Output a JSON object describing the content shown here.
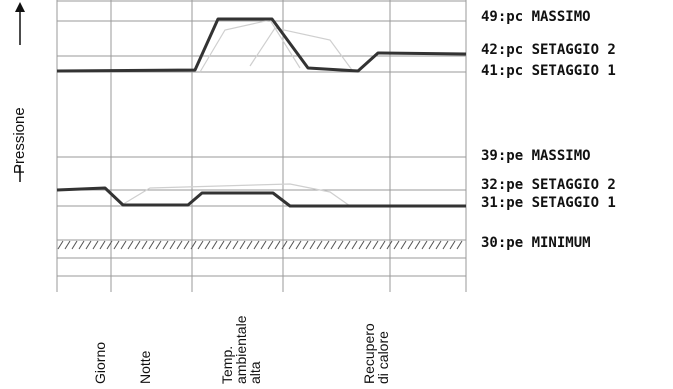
{
  "axis": {
    "y_label": "Pressione"
  },
  "levels": [
    {
      "id": "pc-massimo",
      "label": "49:pc MASSIMO"
    },
    {
      "id": "pc-setaggio-2",
      "label": "42:pc SETAGGIO 2"
    },
    {
      "id": "pc-setaggio-1",
      "label": "41:pc SETAGGIO 1"
    },
    {
      "id": "pe-massimo",
      "label": "39:pe MASSIMO"
    },
    {
      "id": "pe-setaggio-2",
      "label": "32:pe SETAGGIO 2"
    },
    {
      "id": "pe-setaggio-1",
      "label": "31:pe SETAGGIO 1"
    },
    {
      "id": "pe-minimum",
      "label": "30:pe MINIMUM"
    }
  ],
  "phases": [
    {
      "id": "giorno",
      "lines": [
        "Giorno"
      ]
    },
    {
      "id": "notte",
      "lines": [
        "Notte"
      ]
    },
    {
      "id": "temp-ambientale-alta",
      "lines": [
        "Temp.",
        "ambientale",
        "alta"
      ]
    },
    {
      "id": "recupero-di-calore",
      "lines": [
        "Recupero",
        "di calore"
      ]
    }
  ]
}
